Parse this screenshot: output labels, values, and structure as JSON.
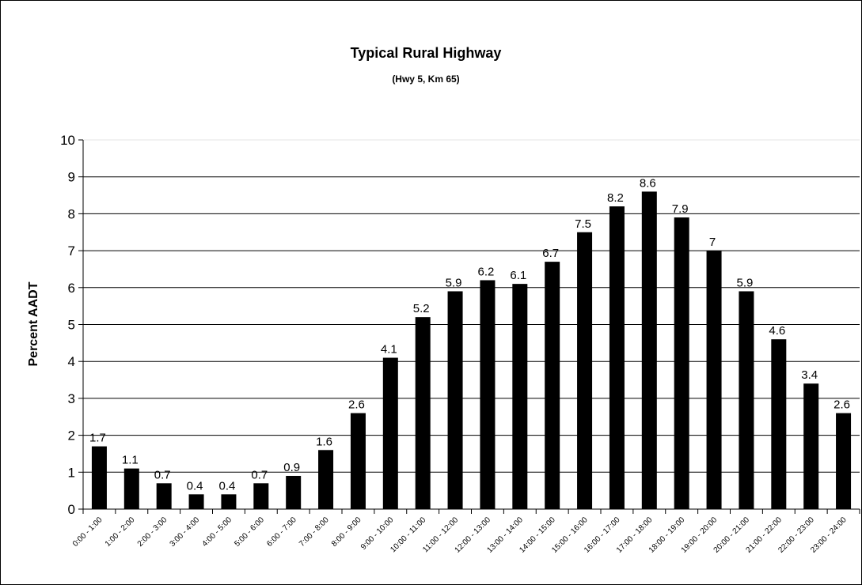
{
  "chart_data": {
    "type": "bar",
    "title": "Typical Rural Highway",
    "subtitle": "(Hwy 5, Km 65)",
    "xlabel": "",
    "ylabel": "Percent AADT",
    "ylim": [
      0,
      10
    ],
    "yticks": [
      "0",
      "1",
      "2",
      "3",
      "4",
      "5",
      "6",
      "7",
      "8",
      "9",
      "10"
    ],
    "grid": true,
    "legend": "none",
    "bar_color": "#000000",
    "categories": [
      "0:00 - 1:00",
      "1:00 - 2:00",
      "2:00 - 3:00",
      "3:00 - 4:00",
      "4:00 - 5:00",
      "5:00 - 6:00",
      "6:00 - 7:00",
      "7:00 - 8:00",
      "8:00 - 9:00",
      "9:00 - 10:00",
      "10:00 - 11:00",
      "11:00 - 12:00",
      "12:00 - 13:00",
      "13:00 - 14:00",
      "14:00 - 15:00",
      "15:00 - 16:00",
      "16:00 - 17:00",
      "17:00 - 18:00",
      "18:00 - 19:00",
      "19:00 - 20:00",
      "20:00 - 21:00",
      "21:00 - 22:00",
      "22:00 - 23:00",
      "23:00 - 24:00"
    ],
    "values": [
      1.7,
      1.1,
      0.7,
      0.4,
      0.4,
      0.7,
      0.9,
      1.6,
      2.6,
      4.1,
      5.2,
      5.9,
      6.2,
      6.1,
      6.7,
      7.5,
      8.2,
      8.6,
      7.9,
      7,
      5.9,
      4.6,
      3.4,
      2.6
    ],
    "data_labels": [
      "1.7",
      "1.1",
      "0.7",
      "0.4",
      "0.4",
      "0.7",
      "0.9",
      "1.6",
      "2.6",
      "4.1",
      "5.2",
      "5.9",
      "6.2",
      "6.1",
      "6.7",
      "7.5",
      "8.2",
      "8.6",
      "7.9",
      "7",
      "5.9",
      "4.6",
      "3.4",
      "2.6"
    ]
  }
}
